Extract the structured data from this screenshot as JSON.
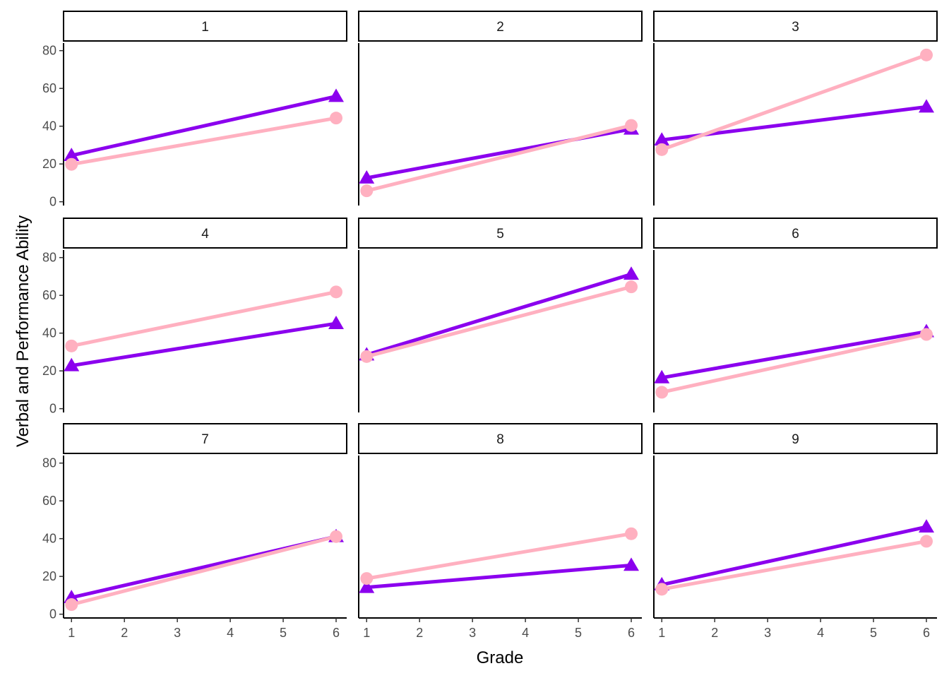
{
  "chart_data": {
    "type": "line",
    "layout": "facet-grid",
    "xlabel": "Grade",
    "ylabel": "Verbal and Performance Ability",
    "xlim": [
      0.85,
      6.2
    ],
    "ylim": [
      -2,
      84
    ],
    "x_ticks": [
      1,
      2,
      3,
      4,
      5,
      6
    ],
    "y_ticks": [
      0,
      20,
      40,
      60,
      80
    ],
    "grid": false,
    "series_styles": [
      {
        "marker": "triangle",
        "color": "#8B00EE"
      },
      {
        "marker": "circle",
        "color": "#FFB0C0"
      }
    ],
    "panels": [
      {
        "label": "1",
        "x": [
          1,
          6
        ],
        "series": [
          {
            "values": [
              24.5,
              55.8
            ]
          },
          {
            "values": [
              19.8,
              44.3
            ]
          }
        ]
      },
      {
        "label": "2",
        "x": [
          1,
          6
        ],
        "series": [
          {
            "values": [
              12.6,
              38.5
            ]
          },
          {
            "values": [
              5.8,
              40.4
            ]
          }
        ]
      },
      {
        "label": "3",
        "x": [
          1,
          6
        ],
        "series": [
          {
            "values": [
              32.7,
              50.2
            ]
          },
          {
            "values": [
              27.6,
              77.7
            ]
          }
        ]
      },
      {
        "label": "4",
        "x": [
          1,
          6
        ],
        "series": [
          {
            "values": [
              22.8,
              45.1
            ]
          },
          {
            "values": [
              33.2,
              61.8
            ]
          }
        ]
      },
      {
        "label": "5",
        "x": [
          1,
          6
        ],
        "series": [
          {
            "values": [
              28.5,
              71.2
            ]
          },
          {
            "values": [
              27.6,
              64.5
            ]
          }
        ]
      },
      {
        "label": "6",
        "x": [
          1,
          6
        ],
        "series": [
          {
            "values": [
              16.4,
              40.8
            ]
          },
          {
            "values": [
              8.7,
              39.3
            ]
          }
        ]
      },
      {
        "label": "7",
        "x": [
          1,
          6
        ],
        "series": [
          {
            "values": [
              8.8,
              41.1
            ]
          },
          {
            "values": [
              5.1,
              41.1
            ]
          }
        ]
      },
      {
        "label": "8",
        "x": [
          1,
          6
        ],
        "series": [
          {
            "values": [
              14.2,
              25.9
            ]
          },
          {
            "values": [
              18.9,
              42.6
            ]
          }
        ]
      },
      {
        "label": "9",
        "x": [
          1,
          6
        ],
        "series": [
          {
            "values": [
              15.6,
              46.2
            ]
          },
          {
            "values": [
              13.2,
              38.6
            ]
          }
        ]
      }
    ]
  }
}
